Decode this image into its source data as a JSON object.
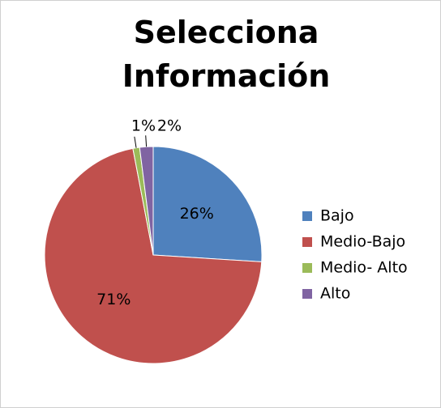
{
  "chart_data": {
    "type": "pie",
    "title": "Selecciona Información",
    "categories": [
      "Bajo",
      "Medio-Bajo",
      "Medio- Alto",
      "Alto"
    ],
    "values": [
      26,
      71,
      1,
      2
    ],
    "value_labels": [
      "26%",
      "71%",
      "1%",
      "2%"
    ],
    "colors": [
      "#4f81bd",
      "#c0504d",
      "#9bbb59",
      "#8064a2"
    ],
    "legend": "right"
  }
}
